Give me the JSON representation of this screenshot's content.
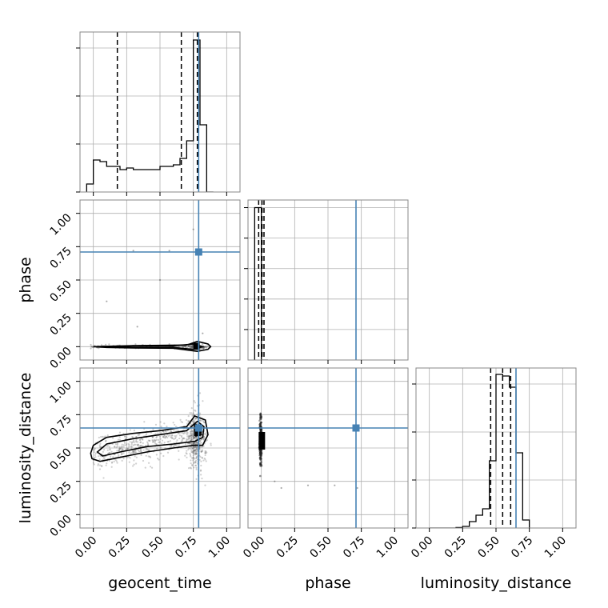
{
  "chart_data": {
    "type": "corner",
    "parameters": [
      "geocent_time",
      "phase",
      "luminosity_distance"
    ],
    "ticks": [
      "0.00",
      "0.25",
      "0.50",
      "0.75",
      "1.00"
    ],
    "range": [
      -0.1,
      1.1
    ],
    "truths": {
      "geocent_time": 0.79,
      "phase": 0.71,
      "luminosity_distance": 0.65
    },
    "colors": {
      "truth": "#4682b4",
      "hist": "#000000",
      "grid": "#b0b0b0",
      "points": "#555555"
    },
    "grid": true,
    "histograms": {
      "geocent_time": {
        "bin_edges": [
          -0.05,
          0.0,
          0.05,
          0.1,
          0.15,
          0.2,
          0.25,
          0.3,
          0.35,
          0.4,
          0.45,
          0.5,
          0.55,
          0.6,
          0.65,
          0.7,
          0.75,
          0.8,
          0.85,
          0.9
        ],
        "counts": [
          0.05,
          0.2,
          0.19,
          0.16,
          0.16,
          0.14,
          0.15,
          0.14,
          0.14,
          0.14,
          0.14,
          0.16,
          0.16,
          0.17,
          0.21,
          0.32,
          0.95,
          0.42,
          0.0
        ],
        "ylim": [
          0,
          1.0
        ],
        "quantiles": [
          0.18,
          0.66,
          0.78
        ]
      },
      "phase": {
        "bin_edges": [
          -0.05,
          0.0,
          0.05
        ],
        "counts": [
          1.0,
          0.0
        ],
        "ylim": [
          0,
          1.05
        ],
        "quantiles": [
          -0.02,
          0.005,
          0.02
        ]
      },
      "luminosity_distance": {
        "bin_edges": [
          0.0,
          0.05,
          0.1,
          0.15,
          0.2,
          0.25,
          0.3,
          0.35,
          0.4,
          0.45,
          0.5,
          0.55,
          0.6,
          0.65,
          0.7,
          0.75
        ],
        "counts": [
          0,
          0,
          0,
          0,
          0.003,
          0.01,
          0.04,
          0.08,
          0.12,
          0.42,
          0.96,
          0.95,
          0.88,
          0.47,
          0.05
        ],
        "ylim": [
          0,
          1.0
        ],
        "quantiles": [
          0.46,
          0.55,
          0.61
        ]
      }
    },
    "contours": {
      "phase_vs_geocent_time": [
        [
          [
            0.0,
            0.0
          ],
          [
            0.15,
            0.004
          ],
          [
            0.3,
            0.008
          ],
          [
            0.5,
            0.01
          ],
          [
            0.7,
            0.012
          ],
          [
            0.78,
            0.04
          ],
          [
            0.86,
            0.02
          ],
          [
            0.88,
            0.0
          ],
          [
            0.86,
            -0.02
          ],
          [
            0.78,
            -0.035
          ],
          [
            0.6,
            -0.012
          ],
          [
            0.3,
            -0.01
          ],
          [
            0.1,
            -0.006
          ],
          [
            0.0,
            0.0
          ]
        ],
        [
          [
            0.02,
            0.0
          ],
          [
            0.3,
            0.005
          ],
          [
            0.6,
            0.006
          ],
          [
            0.75,
            0.02
          ],
          [
            0.82,
            0.0
          ],
          [
            0.75,
            -0.02
          ],
          [
            0.6,
            -0.006
          ],
          [
            0.3,
            -0.006
          ],
          [
            0.02,
            0.0
          ]
        ]
      ],
      "luminosity_distance_vs_geocent_time": [
        [
          [
            -0.02,
            0.46
          ],
          [
            0.0,
            0.52
          ],
          [
            0.1,
            0.58
          ],
          [
            0.3,
            0.61
          ],
          [
            0.5,
            0.63
          ],
          [
            0.7,
            0.66
          ],
          [
            0.76,
            0.74
          ],
          [
            0.84,
            0.71
          ],
          [
            0.86,
            0.6
          ],
          [
            0.82,
            0.52
          ],
          [
            0.75,
            0.52
          ],
          [
            0.6,
            0.5
          ],
          [
            0.4,
            0.47
          ],
          [
            0.2,
            0.43
          ],
          [
            0.05,
            0.4
          ],
          [
            -0.01,
            0.42
          ],
          [
            -0.02,
            0.46
          ]
        ],
        [
          [
            0.03,
            0.47
          ],
          [
            0.1,
            0.53
          ],
          [
            0.3,
            0.57
          ],
          [
            0.5,
            0.6
          ],
          [
            0.7,
            0.63
          ],
          [
            0.78,
            0.7
          ],
          [
            0.83,
            0.66
          ],
          [
            0.82,
            0.58
          ],
          [
            0.76,
            0.55
          ],
          [
            0.6,
            0.53
          ],
          [
            0.4,
            0.51
          ],
          [
            0.2,
            0.47
          ],
          [
            0.07,
            0.44
          ],
          [
            0.03,
            0.47
          ]
        ],
        [
          [
            0.76,
            0.68
          ],
          [
            0.8,
            0.66
          ],
          [
            0.81,
            0.6
          ],
          [
            0.77,
            0.59
          ],
          [
            0.76,
            0.63
          ],
          [
            0.76,
            0.68
          ]
        ]
      ],
      "luminosity_distance_vs_phase": []
    },
    "samples": {
      "phase_vs_geocent_time": [
        [
          0.1,
          0.34
        ],
        [
          0.5,
          0.5
        ],
        [
          0.75,
          0.88
        ],
        [
          0.3,
          0.72
        ],
        [
          0.57,
          0.72
        ],
        [
          0.33,
          0.15
        ],
        [
          0.82,
          0.1
        ]
      ],
      "luminosity_distance_vs_phase": [
        [
          0.15,
          0.2
        ],
        [
          0.35,
          0.22
        ],
        [
          0.55,
          0.22
        ],
        [
          0.72,
          0.2
        ],
        [
          0.1,
          0.25
        ]
      ]
    }
  }
}
